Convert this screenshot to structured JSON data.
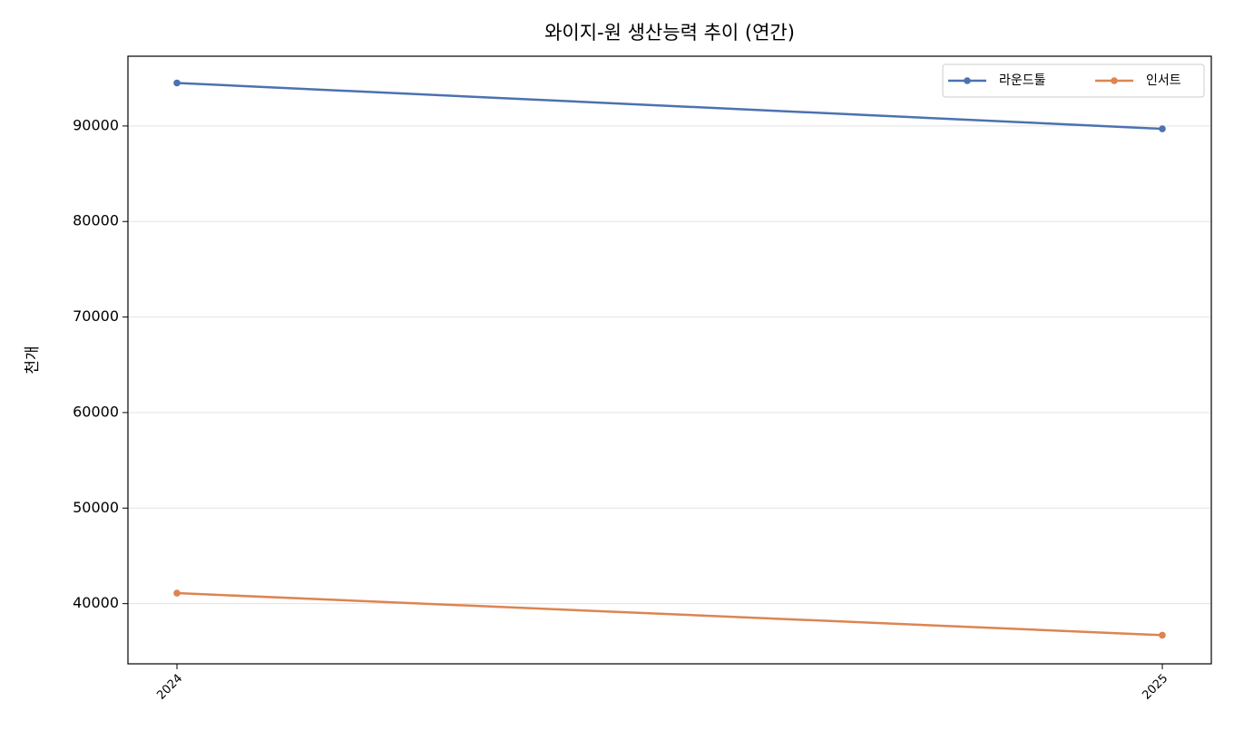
{
  "chart_data": {
    "type": "line",
    "title": "와이지-원 생산능력 추이 (연간)",
    "y_label": "천개",
    "categories": [
      "2024",
      "2025"
    ],
    "series": [
      {
        "name": "라운드툴",
        "color": "#4c72b0",
        "values": [
          94500,
          89700
        ]
      },
      {
        "name": "인서트",
        "color": "#dd8452",
        "values": [
          41100,
          36700
        ]
      }
    ],
    "ylim": [
      33700,
      97300
    ],
    "yticks": [
      40000,
      50000,
      60000,
      70000,
      80000,
      90000
    ],
    "grid": true,
    "legend": "upper-right"
  }
}
